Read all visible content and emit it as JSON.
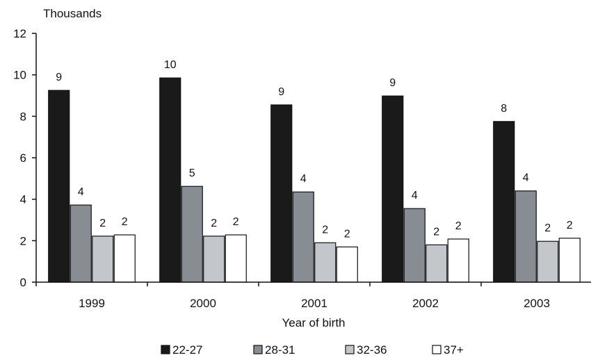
{
  "chart_data": {
    "type": "bar",
    "title": "",
    "ylabel": "Thousands",
    "xlabel": "Year of birth",
    "categories": [
      "1999",
      "2000",
      "2001",
      "2002",
      "2003"
    ],
    "ylim": [
      0,
      12
    ],
    "yticks": [
      0,
      2,
      4,
      6,
      8,
      10,
      12
    ],
    "grid": false,
    "legend_position": "bottom",
    "series": [
      {
        "name": "22-27",
        "color": "#1a1a1a",
        "values": [
          9.25,
          9.85,
          8.55,
          8.98,
          7.75
        ],
        "labels": [
          "9",
          "10",
          "9",
          "9",
          "8"
        ]
      },
      {
        "name": "28-31",
        "color": "#878d92",
        "values": [
          3.72,
          4.62,
          4.35,
          3.55,
          4.4
        ],
        "labels": [
          "4",
          "5",
          "4",
          "4",
          "4"
        ]
      },
      {
        "name": "32-36",
        "color": "#c3c7cb",
        "values": [
          2.22,
          2.22,
          1.9,
          1.8,
          1.97
        ],
        "labels": [
          "2",
          "2",
          "2",
          "2",
          "2"
        ]
      },
      {
        "name": "37+",
        "color": "#ffffff",
        "values": [
          2.28,
          2.28,
          1.7,
          2.08,
          2.12
        ],
        "labels": [
          "2",
          "2",
          "2",
          "2",
          "2"
        ]
      }
    ]
  }
}
